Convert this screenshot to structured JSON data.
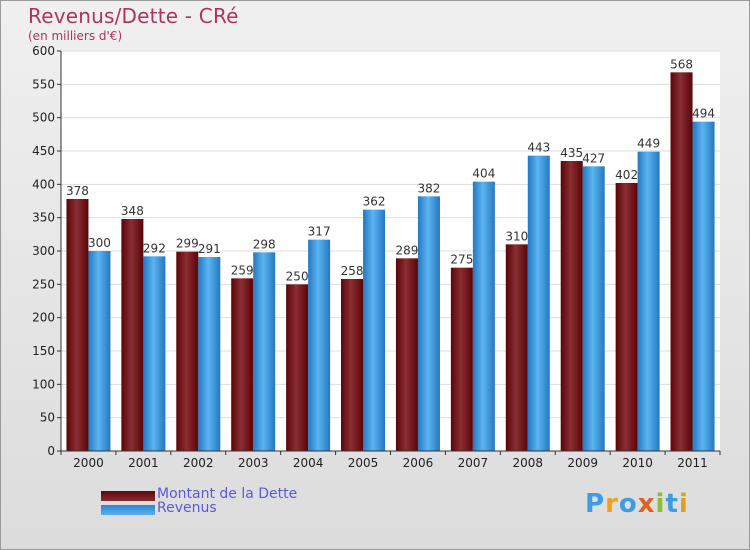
{
  "chart_data": {
    "type": "bar",
    "title": "Revenus/Dette - CRé",
    "subtitle": "(en milliers d'€)",
    "xlabel": "",
    "ylabel": "",
    "categories": [
      "2000",
      "2001",
      "2002",
      "2003",
      "2004",
      "2005",
      "2006",
      "2007",
      "2008",
      "2009",
      "2010",
      "2011"
    ],
    "series": [
      {
        "name": "Montant de la Dette",
        "color": "#7a1a1e",
        "values": [
          378,
          348,
          299,
          259,
          250,
          258,
          289,
          275,
          310,
          435,
          402,
          568
        ]
      },
      {
        "name": "Revenus",
        "color": "#3d9ce6",
        "values": [
          300,
          292,
          291,
          298,
          317,
          362,
          382,
          404,
          443,
          427,
          449,
          494
        ]
      }
    ],
    "ylim": [
      0,
      600
    ],
    "yticks": [
      0,
      50,
      100,
      150,
      200,
      250,
      300,
      350,
      400,
      450,
      500,
      550,
      600
    ],
    "grid": true,
    "legend_position": "bottom-left"
  },
  "logo": {
    "text": "Proxiti",
    "colors": [
      "#3d9ce6",
      "#f0a020",
      "#3d9ce6",
      "#e06020",
      "#8ac030",
      "#3d9ce6",
      "#e0a020"
    ]
  }
}
